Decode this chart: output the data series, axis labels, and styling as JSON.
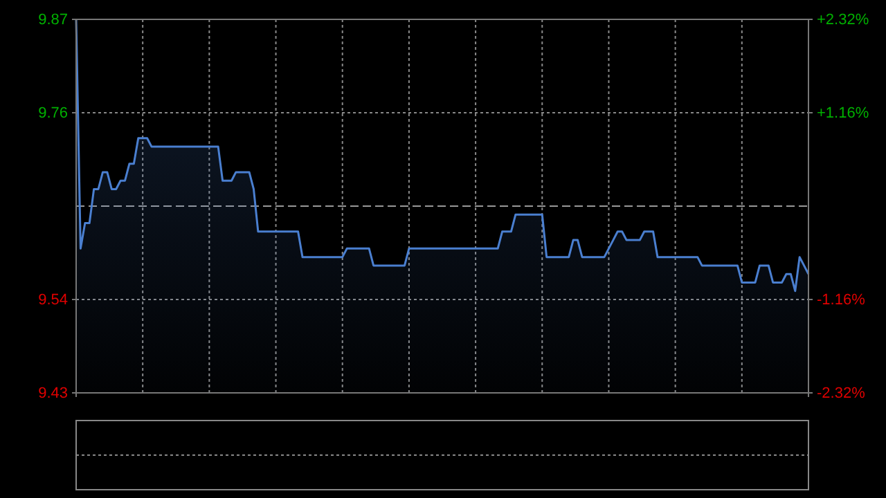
{
  "chart_data": {
    "type": "area",
    "categories": [
      null,
      null,
      null,
      null,
      null,
      null,
      null,
      null,
      null,
      null,
      null,
      null,
      null,
      null,
      null,
      null,
      null,
      null,
      null,
      null,
      null,
      null,
      null,
      null,
      null,
      null,
      null,
      null,
      null,
      null,
      null,
      null,
      null,
      null,
      null,
      null,
      null,
      null,
      null,
      null,
      null,
      null,
      null,
      null,
      null,
      null,
      null,
      null,
      null,
      null,
      null,
      null,
      null,
      null,
      null,
      null,
      null,
      null,
      null,
      null,
      null,
      null,
      null,
      null,
      null,
      null,
      null,
      null,
      null,
      null,
      null,
      null,
      null,
      null,
      null,
      null,
      null,
      null,
      null,
      null,
      null,
      null,
      null,
      null,
      null,
      null,
      null,
      null,
      null,
      null,
      null,
      null,
      null,
      null,
      null,
      null,
      null,
      null,
      null,
      null,
      null,
      null,
      null,
      null,
      null,
      null,
      null,
      null,
      null,
      null,
      null,
      null,
      null,
      null,
      null,
      null,
      null,
      null,
      null,
      null,
      null,
      null,
      null,
      null,
      null,
      null,
      null,
      null,
      null,
      null,
      null,
      null,
      null,
      null,
      null,
      null,
      null,
      null,
      null,
      null,
      null,
      null,
      null,
      null,
      null,
      null,
      null,
      null,
      null,
      null,
      null,
      null,
      null,
      null,
      null,
      null,
      null,
      null,
      null,
      null,
      null,
      null,
      null,
      null,
      null,
      null
    ],
    "series": [
      {
        "color": "#4a7fd0",
        "values": [
          9.87,
          9.6,
          9.63,
          9.63,
          9.67,
          9.67,
          9.69,
          9.69,
          9.67,
          9.67,
          9.68,
          9.68,
          9.7,
          9.7,
          9.73,
          9.73,
          9.73,
          9.72,
          9.72,
          9.72,
          9.72,
          9.72,
          9.72,
          9.72,
          9.72,
          9.72,
          9.72,
          9.72,
          9.72,
          9.72,
          9.72,
          9.72,
          9.72,
          9.68,
          9.68,
          9.68,
          9.69,
          9.69,
          9.69,
          9.69,
          9.67,
          9.62,
          9.62,
          9.62,
          9.62,
          9.62,
          9.62,
          9.62,
          9.62,
          9.62,
          9.62,
          9.59,
          9.59,
          9.59,
          9.59,
          9.59,
          9.59,
          9.59,
          9.59,
          9.59,
          9.59,
          9.6,
          9.6,
          9.6,
          9.6,
          9.6,
          9.6,
          9.58,
          9.58,
          9.58,
          9.58,
          9.58,
          9.58,
          9.58,
          9.58,
          9.6,
          9.6,
          9.6,
          9.6,
          9.6,
          9.6,
          9.6,
          9.6,
          9.6,
          9.6,
          9.6,
          9.6,
          9.6,
          9.6,
          9.6,
          9.6,
          9.6,
          9.6,
          9.6,
          9.6,
          9.6,
          9.62,
          9.62,
          9.62,
          9.64,
          9.64,
          9.64,
          9.64,
          9.64,
          9.64,
          9.64,
          9.59,
          9.59,
          9.59,
          9.59,
          9.59,
          9.59,
          9.61,
          9.61,
          9.59,
          9.59,
          9.59,
          9.59,
          9.59,
          9.59,
          9.6,
          9.61,
          9.62,
          9.62,
          9.61,
          9.61,
          9.61,
          9.61,
          9.62,
          9.62,
          9.62,
          9.59,
          9.59,
          9.59,
          9.59,
          9.59,
          9.59,
          9.59,
          9.59,
          9.59,
          9.59,
          9.58,
          9.58,
          9.58,
          9.58,
          9.58,
          9.58,
          9.58,
          9.58,
          9.58,
          9.56,
          9.56,
          9.56,
          9.56,
          9.58,
          9.58,
          9.58,
          9.56,
          9.56,
          9.56,
          9.57,
          9.57,
          9.55,
          9.59,
          9.58,
          9.57
        ]
      }
    ],
    "ylim": [
      9.43,
      9.87
    ],
    "yticks": [
      9.87,
      9.76,
      9.54,
      9.43
    ],
    "y2lim": [
      -2.32,
      2.32
    ],
    "y2ticks": [
      {
        "value": 2.32,
        "label": "+2.32%"
      },
      {
        "value": 1.16,
        "label": "+1.16%"
      },
      {
        "value": -1.16,
        "label": "-1.16%"
      },
      {
        "value": -2.32,
        "label": "-2.32%"
      }
    ],
    "ref_lines": [
      {
        "axis": "y",
        "value": 9.65,
        "line_style": "dashed"
      }
    ],
    "grid": true,
    "marker": "none",
    "line_style": "solid"
  }
}
